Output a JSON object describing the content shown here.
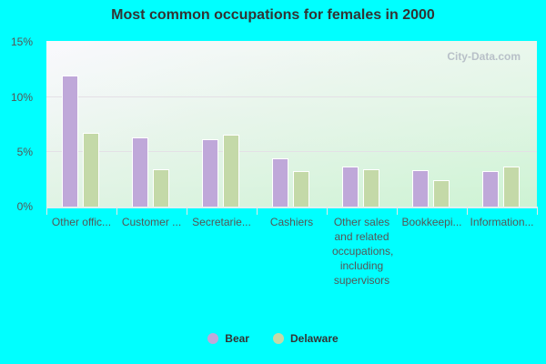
{
  "chart_data": {
    "type": "bar",
    "title": "Most common occupations for females in 2000",
    "xlabel": "",
    "ylabel": "",
    "ylim": [
      0,
      15
    ],
    "yticks": [
      "0%",
      "5%",
      "10%",
      "15%"
    ],
    "grid": true,
    "legend_position": "bottom",
    "categories": [
      "Other offic...",
      "Customer ...",
      "Secretarie...",
      "Cashiers",
      "Other sales and related occupations, including supervisors",
      "Bookkeepi...",
      "Information..."
    ],
    "series": [
      {
        "name": "Bear",
        "color": "#bfa8d9",
        "values": [
          11.9,
          6.3,
          6.1,
          4.4,
          3.6,
          3.3,
          3.2
        ]
      },
      {
        "name": "Delaware",
        "color": "#c4d9a8",
        "values": [
          6.7,
          3.4,
          6.5,
          3.2,
          3.4,
          2.4,
          3.6
        ]
      }
    ],
    "watermark": "City-Data.com"
  }
}
